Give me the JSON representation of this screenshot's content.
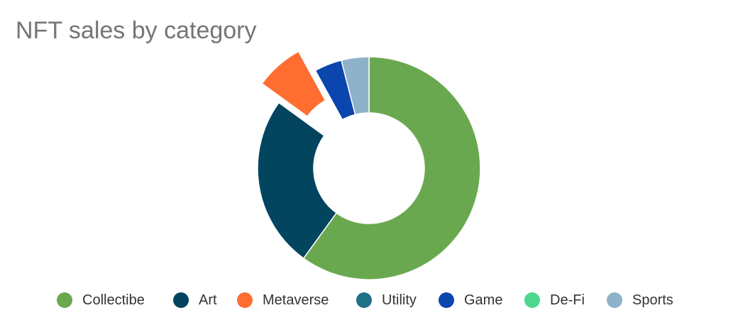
{
  "chart_data": {
    "type": "pie",
    "subtype": "donut",
    "title": "NFT sales by category",
    "legend_position": "bottom",
    "categories": [
      "Collectibe",
      "Art",
      "Metaverse",
      "Utility",
      "Game",
      "De-Fi",
      "Sports"
    ],
    "values": [
      60,
      25,
      7,
      0,
      4,
      0,
      4
    ],
    "colors": [
      "#6aa84f",
      "#03455f",
      "#ff6d31",
      "#1f7287",
      "#0b45ae",
      "#4dd68f",
      "#8eb2ca"
    ],
    "exploded": [
      "Metaverse"
    ]
  }
}
